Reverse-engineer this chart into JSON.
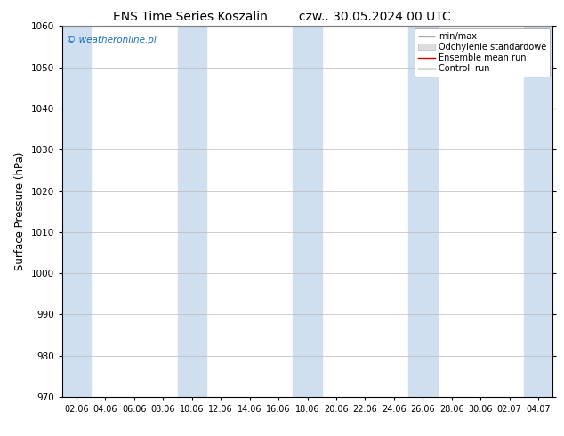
{
  "title_left": "ENS Time Series Koszalin",
  "title_right": "czw.. 30.05.2024 00 UTC",
  "ylabel": "Surface Pressure (hPa)",
  "ylim": [
    970,
    1060
  ],
  "yticks": [
    970,
    980,
    990,
    1000,
    1010,
    1020,
    1030,
    1040,
    1050,
    1060
  ],
  "x_tick_labels": [
    "02.06",
    "04.06",
    "06.06",
    "08.06",
    "10.06",
    "12.06",
    "14.06",
    "16.06",
    "18.06",
    "20.06",
    "22.06",
    "24.06",
    "26.06",
    "28.06",
    "30.06",
    "02.07",
    "04.07"
  ],
  "background_color": "#ffffff",
  "plot_bg_color": "#ffffff",
  "band_color": "#cfdff0",
  "watermark": "© weatheronline.pl",
  "watermark_color": "#1a6bbf",
  "legend_items": [
    {
      "label": "min/max",
      "color": "#aaaaaa",
      "lw": 1.0
    },
    {
      "label": "Odchylenie standardowe",
      "color": "#cccccc",
      "lw": 5
    },
    {
      "label": "Ensemble mean run",
      "color": "#cc0000",
      "lw": 1.0
    },
    {
      "label": "Controll run",
      "color": "#006600",
      "lw": 1.0
    }
  ]
}
